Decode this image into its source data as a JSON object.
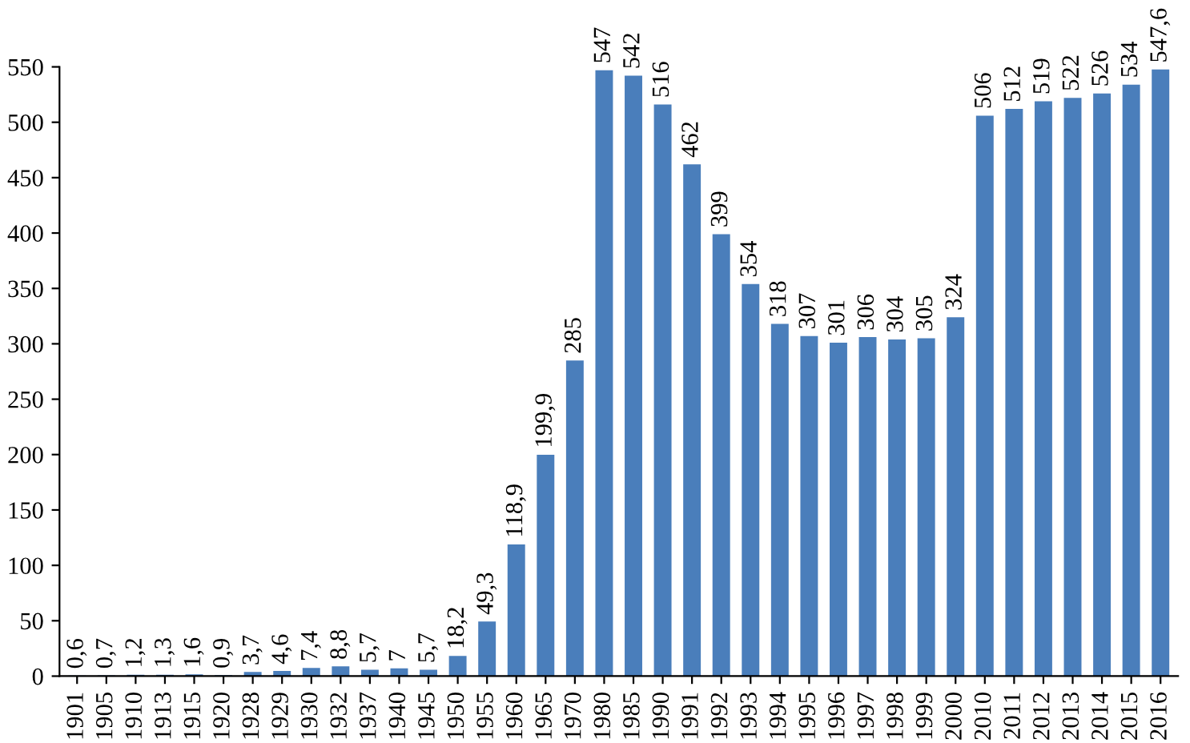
{
  "chart_data": {
    "type": "bar",
    "categories": [
      "1901",
      "1905",
      "1910",
      "1913",
      "1915",
      "1920",
      "1928",
      "1929",
      "1930",
      "1932",
      "1937",
      "1940",
      "1945",
      "1950",
      "1955",
      "1960",
      "1965",
      "1970",
      "1980",
      "1985",
      "1990",
      "1991",
      "1992",
      "1993",
      "1994",
      "1995",
      "1996",
      "1997",
      "1998",
      "1999",
      "2000",
      "2010",
      "2011",
      "2012",
      "2013",
      "2014",
      "2015",
      "2016"
    ],
    "values": [
      0.6,
      0.7,
      1.2,
      1.3,
      1.6,
      0.9,
      3.7,
      4.6,
      7.4,
      8.8,
      5.7,
      7,
      5.7,
      18.2,
      49.3,
      118.9,
      199.9,
      285,
      547,
      542,
      516,
      462,
      399,
      354,
      318,
      307,
      301,
      306,
      304,
      305,
      324,
      506,
      512,
      519,
      522,
      526,
      534,
      547.6
    ],
    "value_labels": [
      "0,6",
      "0,7",
      "1,2",
      "1,3",
      "1,6",
      "0,9",
      "3,7",
      "4,6",
      "7,4",
      "8,8",
      "5,7",
      "7",
      "5,7",
      "18,2",
      "49,3",
      "118,9",
      "199,9",
      "285",
      "547",
      "542",
      "516",
      "462",
      "399",
      "354",
      "318",
      "307",
      "301",
      "306",
      "304",
      "305",
      "324",
      "506",
      "512",
      "519",
      "522",
      "526",
      "534",
      "547,6"
    ],
    "color": "#4a7ebb",
    "ylim": [
      0,
      550
    ],
    "yticks": [
      0,
      50,
      100,
      150,
      200,
      250,
      300,
      350,
      400,
      450,
      500,
      550
    ],
    "grid": false
  }
}
